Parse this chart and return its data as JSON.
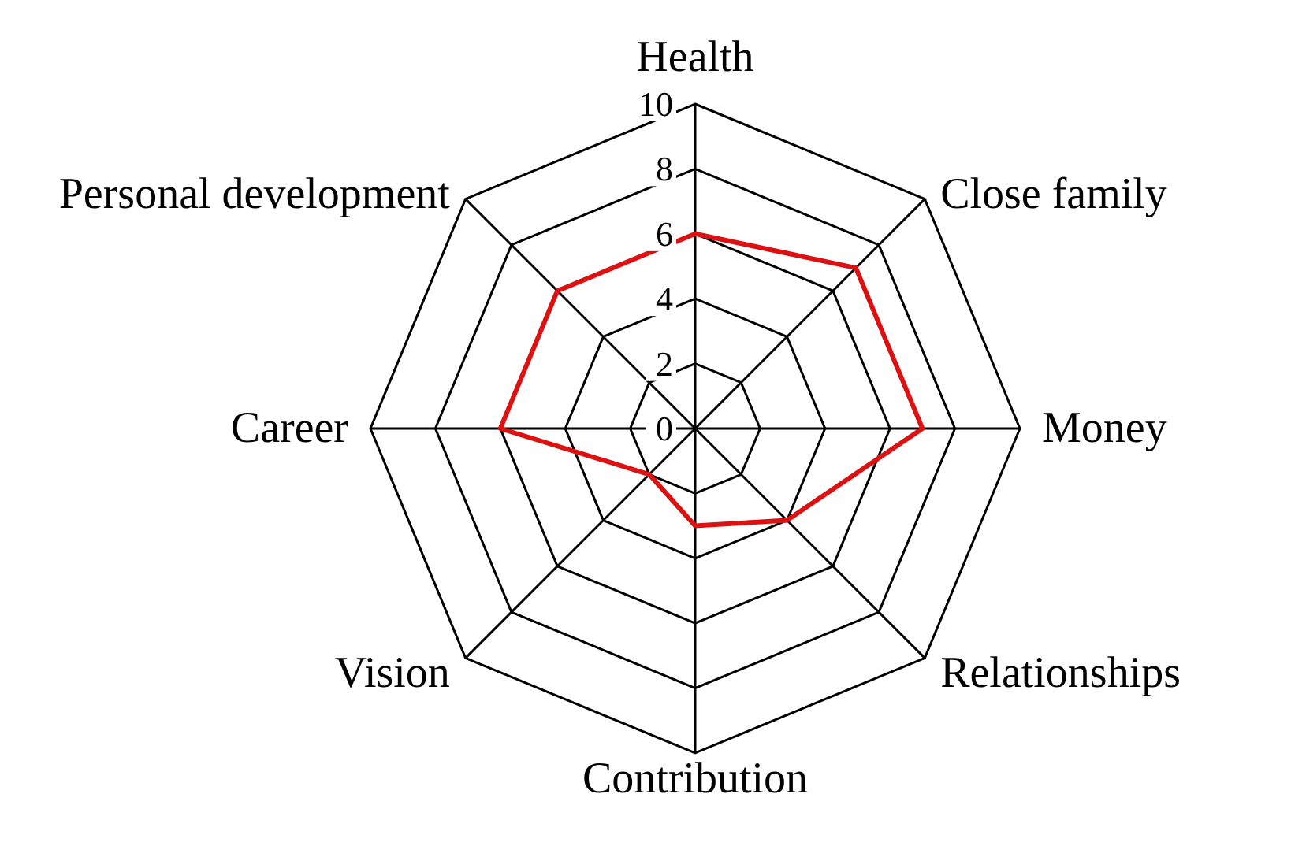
{
  "chart_data": {
    "type": "radar",
    "categories": [
      "Health",
      "Close family",
      "Money",
      "Relationships",
      "Contribution",
      "Vision",
      "Career",
      "Personal development"
    ],
    "series": [
      {
        "color": "#dd1111",
        "values": [
          6,
          7,
          7,
          4,
          3,
          2,
          6,
          6
        ]
      }
    ],
    "ylim": [
      0,
      10
    ],
    "yticks": [
      0,
      2,
      4,
      6,
      8,
      10
    ],
    "grid": true
  }
}
